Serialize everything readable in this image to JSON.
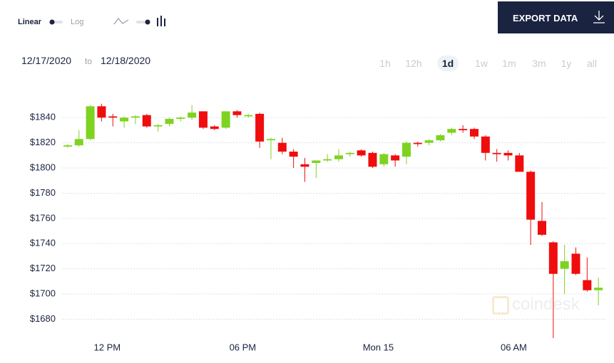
{
  "controls": {
    "linear": "Linear",
    "log": "Log",
    "export": "EXPORT DATA",
    "date_from": "12/17/2020",
    "date_sep": "to",
    "date_to": "12/18/2020",
    "ranges": [
      "1h",
      "12h",
      "1d",
      "1w",
      "1m",
      "3m",
      "1y",
      "all"
    ],
    "selected_range": 2
  },
  "watermark": "coindesk",
  "chart_data": {
    "type": "candlestick",
    "x": [
      10.25,
      10.75,
      11.25,
      11.75,
      12.25,
      12.75,
      13.25,
      13.75,
      14.25,
      14.75,
      15.25,
      15.75,
      16.25,
      16.75,
      17.25,
      17.75,
      18.25,
      18.75,
      19.25,
      19.75,
      20.25,
      20.75,
      21.25,
      21.75,
      22.25,
      22.75,
      23.25,
      23.75,
      24.25,
      24.75,
      25.25,
      25.75,
      26.25,
      26.75,
      27.25,
      27.75,
      28.25,
      28.75,
      29.25,
      29.75,
      30.25,
      30.75,
      31.25,
      31.75,
      32.25,
      32.75,
      33.25,
      33.75
    ],
    "open": [
      1817,
      1818,
      1823,
      1849,
      1841,
      1837,
      1840,
      1842,
      1833,
      1835,
      1839,
      1840,
      1845,
      1833,
      1832,
      1845,
      1841,
      1843,
      1822,
      1820,
      1813,
      1803,
      1804,
      1806,
      1807,
      1811,
      1814,
      1812,
      1803,
      1810,
      1809,
      1820,
      1820,
      1822,
      1828,
      1831,
      1831,
      1825,
      1812,
      1812,
      1810,
      1797,
      1758,
      1741,
      1720,
      1732,
      1711,
      1703
    ],
    "high": [
      1819,
      1830,
      1850,
      1851,
      1843,
      1841,
      1842,
      1843,
      1835,
      1840,
      1841,
      1850,
      1845,
      1834,
      1845,
      1846,
      1843,
      1844,
      1824,
      1824,
      1815,
      1808,
      1806,
      1811,
      1815,
      1813,
      1815,
      1813,
      1812,
      1811,
      1821,
      1821,
      1823,
      1827,
      1832,
      1834,
      1832,
      1826,
      1815,
      1814,
      1812,
      1798,
      1773,
      1742,
      1739,
      1737,
      1729,
      1713
    ],
    "low": [
      1816,
      1817,
      1822,
      1837,
      1833,
      1832,
      1835,
      1832,
      1829,
      1833,
      1837,
      1838,
      1831,
      1830,
      1831,
      1840,
      1840,
      1816,
      1807,
      1811,
      1800,
      1789,
      1792,
      1805,
      1805,
      1809,
      1809,
      1800,
      1801,
      1801,
      1803,
      1817,
      1818,
      1821,
      1826,
      1828,
      1823,
      1806,
      1805,
      1806,
      1797,
      1739,
      1746,
      1665,
      1700,
      1715,
      1702,
      1691
    ],
    "close": [
      1818,
      1823,
      1849,
      1840,
      1840,
      1840,
      1841,
      1833,
      1834,
      1839,
      1840,
      1844,
      1832,
      1831,
      1845,
      1842,
      1842,
      1821,
      1823,
      1813,
      1809,
      1801,
      1806,
      1807,
      1810,
      1812,
      1810,
      1801,
      1811,
      1806,
      1820,
      1819,
      1822,
      1826,
      1831,
      1830,
      1825,
      1812,
      1811,
      1810,
      1797,
      1759,
      1747,
      1716,
      1726,
      1716,
      1703,
      1705
    ],
    "up_color": "#7ed321",
    "down_color": "#f00d0d",
    "xlim": [
      10,
      34.25
    ],
    "xticks": [
      {
        "value": 12,
        "label": "12 PM"
      },
      {
        "value": 18,
        "label": "06 PM"
      },
      {
        "value": 24,
        "label": "Mon 15"
      },
      {
        "value": 30,
        "label": "06 AM"
      }
    ],
    "ylim": [
      1665,
      1865
    ],
    "yticks": [
      {
        "value": 1680,
        "label": "$1680"
      },
      {
        "value": 1700,
        "label": "$1700"
      },
      {
        "value": 1720,
        "label": "$1720"
      },
      {
        "value": 1740,
        "label": "$1740"
      },
      {
        "value": 1760,
        "label": "$1760"
      },
      {
        "value": 1780,
        "label": "$1780"
      },
      {
        "value": 1800,
        "label": "$1800"
      },
      {
        "value": 1820,
        "label": "$1820"
      },
      {
        "value": 1840,
        "label": "$1840"
      }
    ],
    "grid": true
  }
}
